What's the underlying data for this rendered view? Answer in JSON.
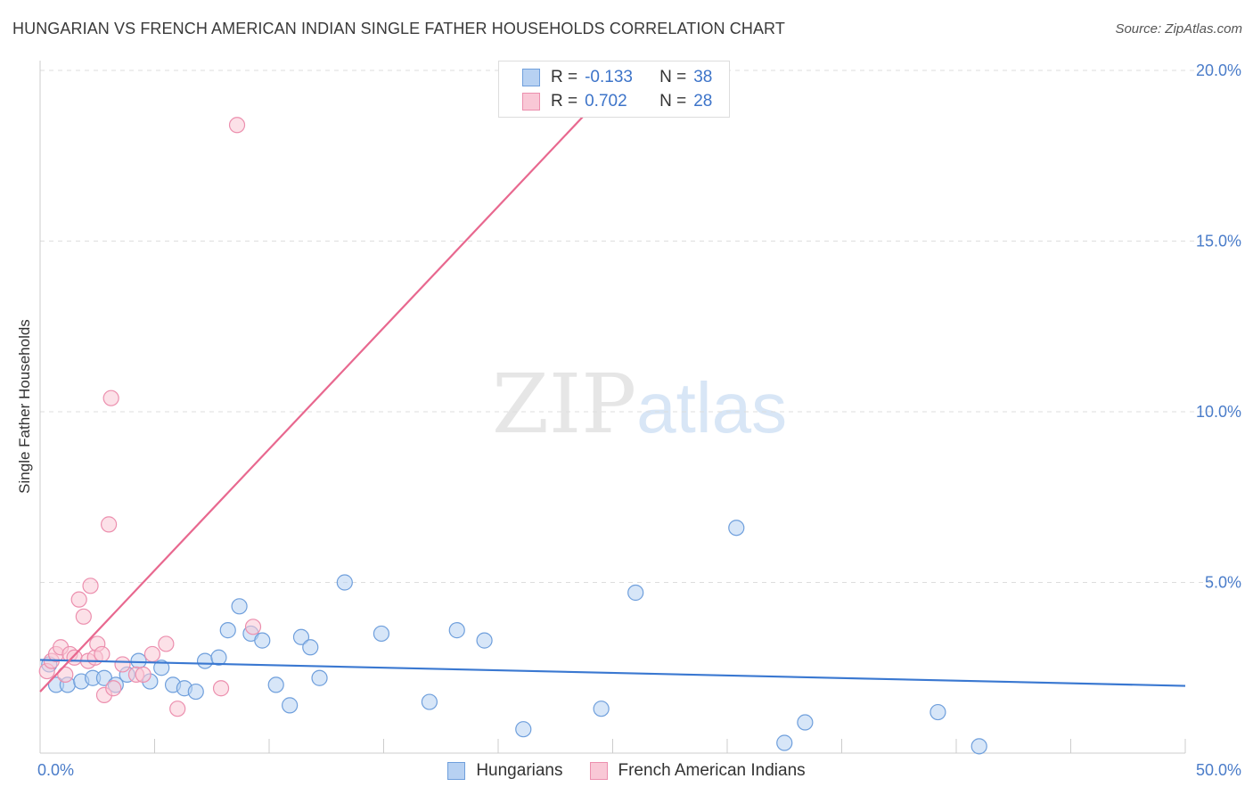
{
  "title": "HUNGARIAN VS FRENCH AMERICAN INDIAN SINGLE FATHER HOUSEHOLDS CORRELATION CHART",
  "source": "Source: ZipAtlas.com",
  "watermark": {
    "zip": "ZIP",
    "atlas": "atlas"
  },
  "legend_top": {
    "rows": [
      {
        "r_label": "R =",
        "r_value": "-0.133",
        "n_label": "N =",
        "n_value": "38"
      },
      {
        "r_label": "R =",
        "r_value": "0.702",
        "n_label": "N =",
        "n_value": "28"
      }
    ]
  },
  "colors": {
    "blue_fill": "#b7d1f2",
    "blue_stroke": "#6f9fdc",
    "blue_line": "#3a78d1",
    "pink_fill": "#f9c8d6",
    "pink_stroke": "#ec8fae",
    "pink_line": "#e8688f",
    "grid": "#dddddd",
    "axis_text": "#4a7cc9"
  },
  "chart_data": {
    "type": "scatter",
    "xlabel": "",
    "ylabel": "Single Father Households",
    "xlim": [
      0,
      50
    ],
    "ylim": [
      0,
      20
    ],
    "x_ticks": [
      {
        "v": 0,
        "label": "0.0%"
      },
      {
        "v": 50,
        "label": "50.0%"
      }
    ],
    "y_ticks": [
      {
        "v": 5,
        "label": "5.0%"
      },
      {
        "v": 10,
        "label": "10.0%"
      },
      {
        "v": 15,
        "label": "15.0%"
      },
      {
        "v": 20,
        "label": "20.0%"
      }
    ],
    "grid": true,
    "legend_position": "bottom-center",
    "series": [
      {
        "name": "Hungarians",
        "color": "blue",
        "points": [
          [
            0.4,
            2.6
          ],
          [
            0.7,
            2.0
          ],
          [
            1.2,
            2.0
          ],
          [
            1.8,
            2.1
          ],
          [
            2.3,
            2.2
          ],
          [
            2.8,
            2.2
          ],
          [
            3.3,
            2.0
          ],
          [
            3.8,
            2.3
          ],
          [
            4.3,
            2.7
          ],
          [
            4.8,
            2.1
          ],
          [
            5.3,
            2.5
          ],
          [
            5.8,
            2.0
          ],
          [
            6.3,
            1.9
          ],
          [
            6.8,
            1.8
          ],
          [
            7.2,
            2.7
          ],
          [
            7.8,
            2.8
          ],
          [
            8.2,
            3.6
          ],
          [
            8.7,
            4.3
          ],
          [
            9.2,
            3.5
          ],
          [
            9.7,
            3.3
          ],
          [
            10.3,
            2.0
          ],
          [
            10.9,
            1.4
          ],
          [
            11.4,
            3.4
          ],
          [
            11.8,
            3.1
          ],
          [
            12.2,
            2.2
          ],
          [
            13.3,
            5.0
          ],
          [
            14.9,
            3.5
          ],
          [
            17.0,
            1.5
          ],
          [
            18.2,
            3.6
          ],
          [
            19.4,
            3.3
          ],
          [
            21.1,
            0.7
          ],
          [
            24.5,
            1.3
          ],
          [
            26.0,
            4.7
          ],
          [
            30.4,
            6.6
          ],
          [
            32.5,
            0.3
          ],
          [
            33.4,
            0.9
          ],
          [
            39.2,
            1.2
          ],
          [
            41.0,
            0.2
          ]
        ],
        "trend": {
          "x0": 0,
          "y0": 2.73,
          "x1": 50,
          "y1": 1.97
        }
      },
      {
        "name": "French American Indians",
        "color": "pink",
        "points": [
          [
            0.3,
            2.4
          ],
          [
            0.5,
            2.7
          ],
          [
            0.7,
            2.9
          ],
          [
            0.9,
            3.1
          ],
          [
            1.1,
            2.3
          ],
          [
            1.3,
            2.9
          ],
          [
            1.5,
            2.8
          ],
          [
            1.7,
            4.5
          ],
          [
            1.9,
            4.0
          ],
          [
            2.1,
            2.7
          ],
          [
            2.2,
            4.9
          ],
          [
            2.4,
            2.8
          ],
          [
            2.5,
            3.2
          ],
          [
            2.7,
            2.9
          ],
          [
            2.8,
            1.7
          ],
          [
            3.0,
            6.7
          ],
          [
            3.1,
            10.4
          ],
          [
            3.2,
            1.9
          ],
          [
            3.6,
            2.6
          ],
          [
            4.2,
            2.3
          ],
          [
            4.5,
            2.3
          ],
          [
            4.9,
            2.9
          ],
          [
            5.5,
            3.2
          ],
          [
            6.0,
            1.3
          ],
          [
            7.9,
            1.9
          ],
          [
            8.6,
            18.4
          ],
          [
            9.3,
            3.7
          ],
          [
            24.2,
            20.0
          ]
        ],
        "trend": {
          "x0": 0,
          "y0": 1.8,
          "x1": 24.2,
          "y1": 19.0
        }
      }
    ]
  }
}
